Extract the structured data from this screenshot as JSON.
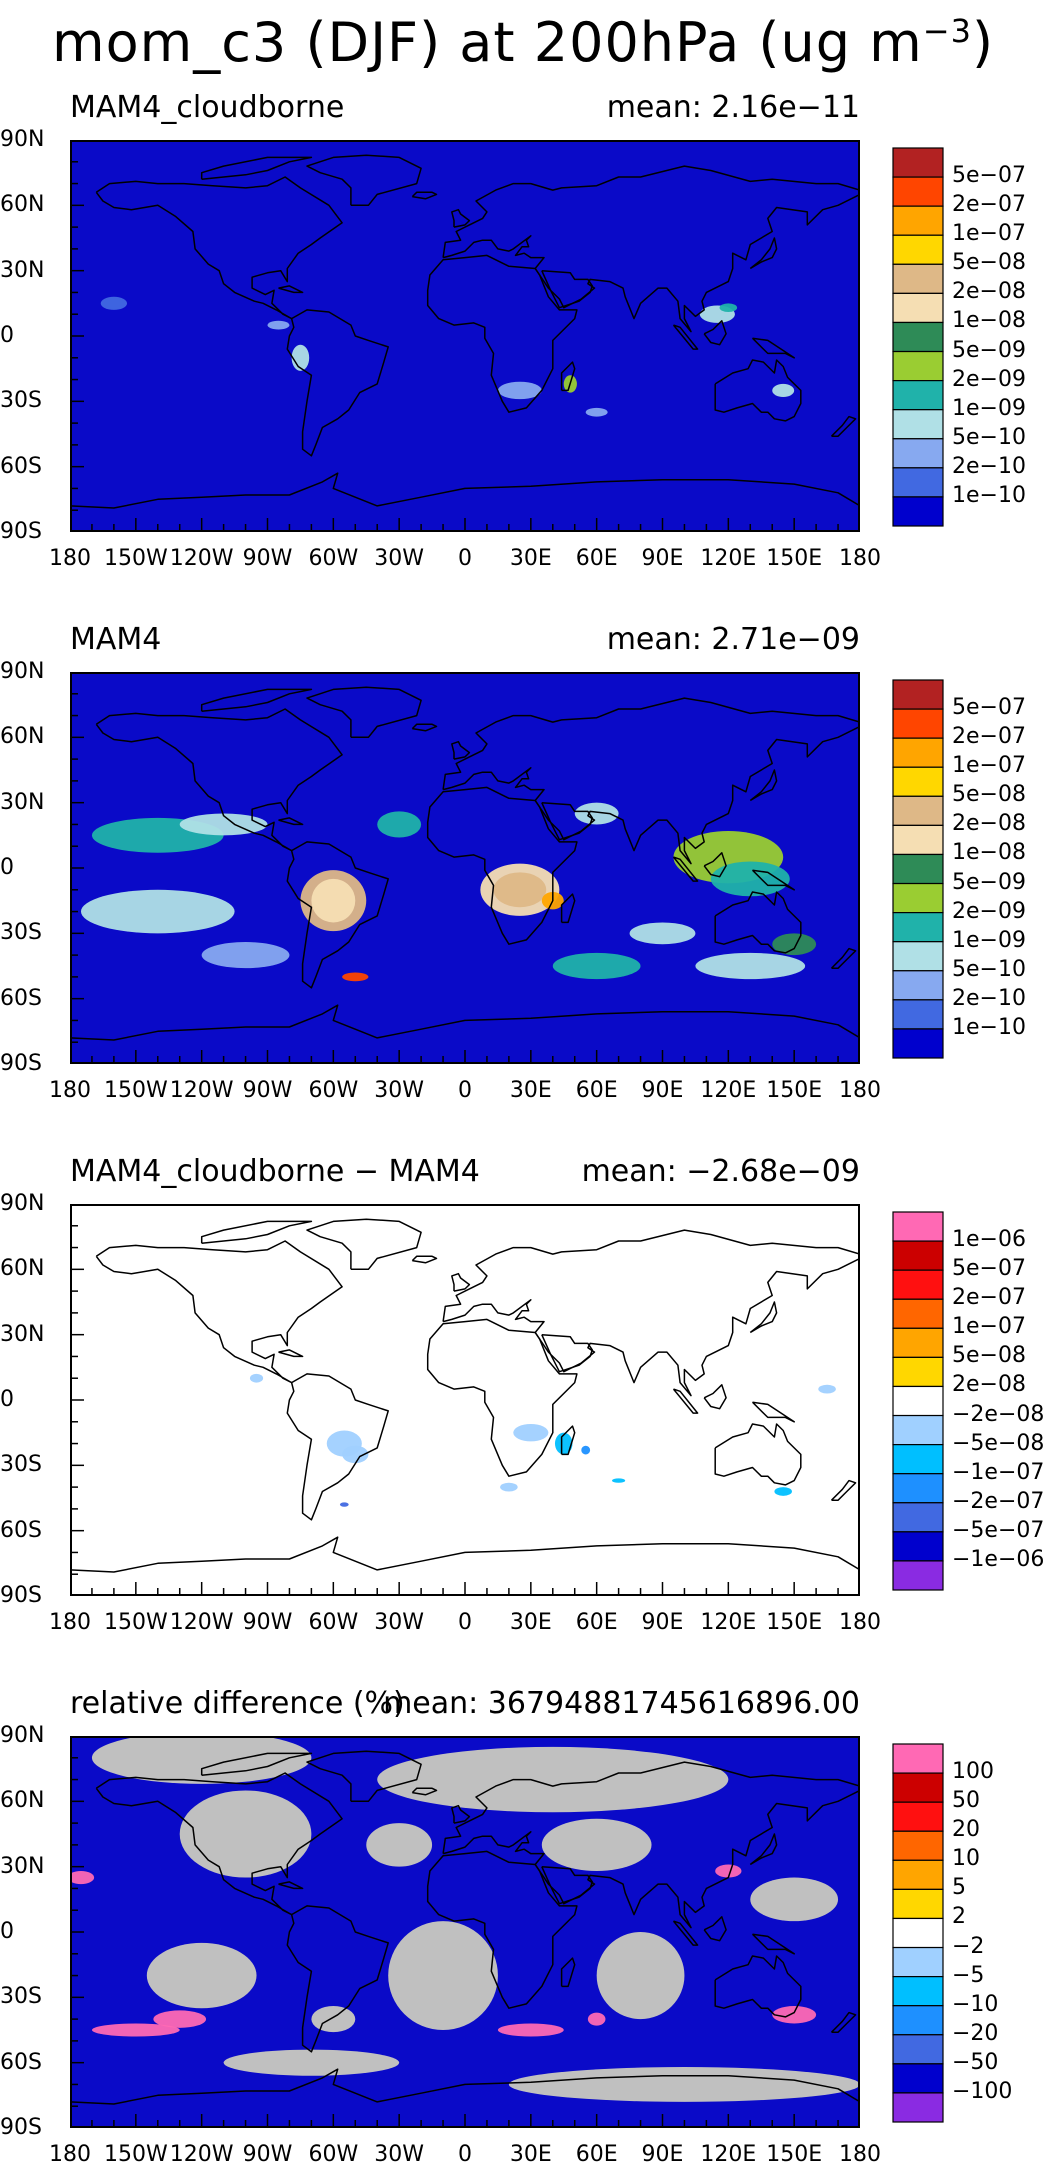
{
  "title": {
    "main": "mom_c3 (DJF) at 200hPa (ug m",
    "sup": "−3",
    "end": ")"
  },
  "lat_ticks": [
    "90N",
    "60N",
    "30N",
    "0",
    "30S",
    "60S",
    "90S"
  ],
  "lon_ticks": [
    "180",
    "150W",
    "120W",
    "90W",
    "60W",
    "30W",
    "0",
    "30E",
    "60E",
    "90E",
    "120E",
    "150E",
    "180"
  ],
  "panels": [
    {
      "label": "MAM4_cloudborne",
      "mean": "mean: 2.16e−11",
      "background": "#0a0ac8",
      "colorbar": {
        "colors": [
          "#b22222",
          "#ff4500",
          "#ffa500",
          "#ffd700",
          "#deb887",
          "#f5deb3",
          "#2e8b57",
          "#9acd32",
          "#20b2aa",
          "#b0e0e6",
          "#87a9f0",
          "#4169e1",
          "#0000cd"
        ],
        "labels": [
          "5e−07",
          "2e−07",
          "1e−07",
          "5e−08",
          "2e−08",
          "1e−08",
          "5e−09",
          "2e−09",
          "1e−09",
          "5e−10",
          "2e−10",
          "1e−10"
        ]
      }
    },
    {
      "label": "MAM4",
      "mean": "mean: 2.71e−09",
      "background": "#0a0ac8",
      "colorbar": {
        "colors": [
          "#b22222",
          "#ff4500",
          "#ffa500",
          "#ffd700",
          "#deb887",
          "#f5deb3",
          "#2e8b57",
          "#9acd32",
          "#20b2aa",
          "#b0e0e6",
          "#87a9f0",
          "#4169e1",
          "#0000cd"
        ],
        "labels": [
          "5e−07",
          "2e−07",
          "1e−07",
          "5e−08",
          "2e−08",
          "1e−08",
          "5e−09",
          "2e−09",
          "1e−09",
          "5e−10",
          "2e−10",
          "1e−10"
        ]
      }
    },
    {
      "label": "MAM4_cloudborne − MAM4",
      "mean": "mean: −2.68e−09",
      "background": "#ffffff",
      "colorbar": {
        "colors": [
          "#ff69b4",
          "#cc0000",
          "#ff1010",
          "#ff6600",
          "#ffa500",
          "#ffd700",
          "#ffffff",
          "#a0d0ff",
          "#00bfff",
          "#1e90ff",
          "#4169e1",
          "#0000cd",
          "#8a2be2"
        ],
        "labels": [
          "1e−06",
          "5e−07",
          "2e−07",
          "1e−07",
          "5e−08",
          "2e−08",
          "−2e−08",
          "−5e−08",
          "−1e−07",
          "−2e−07",
          "−5e−07",
          "−1e−06"
        ]
      }
    },
    {
      "label": "relative difference (%)",
      "mean": "mean: 36794881745616896.00",
      "background": "#0a0ac8",
      "colorbar": {
        "colors": [
          "#ff69b4",
          "#cc0000",
          "#ff1010",
          "#ff6600",
          "#ffa500",
          "#ffd700",
          "#ffffff",
          "#a0d0ff",
          "#00bfff",
          "#1e90ff",
          "#4169e1",
          "#0000cd",
          "#8a2be2"
        ],
        "labels": [
          "100",
          "50",
          "20",
          "10",
          "5",
          "2",
          "−2",
          "−5",
          "−10",
          "−20",
          "−50",
          "−100"
        ]
      }
    }
  ]
}
